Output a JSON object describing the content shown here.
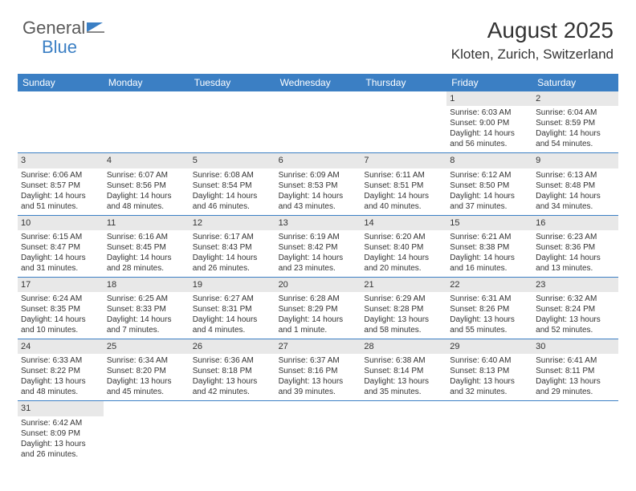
{
  "logo": {
    "general": "General",
    "blue": "Blue"
  },
  "title": "August 2025",
  "location": "Kloten, Zurich, Switzerland",
  "colors": {
    "header_bg": "#3b7fc4",
    "header_text": "#ffffff",
    "daynum_bg": "#e8e8e8",
    "border": "#3b7fc4",
    "body_text": "#333333"
  },
  "daynames": [
    "Sunday",
    "Monday",
    "Tuesday",
    "Wednesday",
    "Thursday",
    "Friday",
    "Saturday"
  ],
  "weeks": [
    [
      null,
      null,
      null,
      null,
      null,
      {
        "n": "1",
        "sr": "6:03 AM",
        "ss": "9:00 PM",
        "dl": "14 hours and 56 minutes."
      },
      {
        "n": "2",
        "sr": "6:04 AM",
        "ss": "8:59 PM",
        "dl": "14 hours and 54 minutes."
      }
    ],
    [
      {
        "n": "3",
        "sr": "6:06 AM",
        "ss": "8:57 PM",
        "dl": "14 hours and 51 minutes."
      },
      {
        "n": "4",
        "sr": "6:07 AM",
        "ss": "8:56 PM",
        "dl": "14 hours and 48 minutes."
      },
      {
        "n": "5",
        "sr": "6:08 AM",
        "ss": "8:54 PM",
        "dl": "14 hours and 46 minutes."
      },
      {
        "n": "6",
        "sr": "6:09 AM",
        "ss": "8:53 PM",
        "dl": "14 hours and 43 minutes."
      },
      {
        "n": "7",
        "sr": "6:11 AM",
        "ss": "8:51 PM",
        "dl": "14 hours and 40 minutes."
      },
      {
        "n": "8",
        "sr": "6:12 AM",
        "ss": "8:50 PM",
        "dl": "14 hours and 37 minutes."
      },
      {
        "n": "9",
        "sr": "6:13 AM",
        "ss": "8:48 PM",
        "dl": "14 hours and 34 minutes."
      }
    ],
    [
      {
        "n": "10",
        "sr": "6:15 AM",
        "ss": "8:47 PM",
        "dl": "14 hours and 31 minutes."
      },
      {
        "n": "11",
        "sr": "6:16 AM",
        "ss": "8:45 PM",
        "dl": "14 hours and 28 minutes."
      },
      {
        "n": "12",
        "sr": "6:17 AM",
        "ss": "8:43 PM",
        "dl": "14 hours and 26 minutes."
      },
      {
        "n": "13",
        "sr": "6:19 AM",
        "ss": "8:42 PM",
        "dl": "14 hours and 23 minutes."
      },
      {
        "n": "14",
        "sr": "6:20 AM",
        "ss": "8:40 PM",
        "dl": "14 hours and 20 minutes."
      },
      {
        "n": "15",
        "sr": "6:21 AM",
        "ss": "8:38 PM",
        "dl": "14 hours and 16 minutes."
      },
      {
        "n": "16",
        "sr": "6:23 AM",
        "ss": "8:36 PM",
        "dl": "14 hours and 13 minutes."
      }
    ],
    [
      {
        "n": "17",
        "sr": "6:24 AM",
        "ss": "8:35 PM",
        "dl": "14 hours and 10 minutes."
      },
      {
        "n": "18",
        "sr": "6:25 AM",
        "ss": "8:33 PM",
        "dl": "14 hours and 7 minutes."
      },
      {
        "n": "19",
        "sr": "6:27 AM",
        "ss": "8:31 PM",
        "dl": "14 hours and 4 minutes."
      },
      {
        "n": "20",
        "sr": "6:28 AM",
        "ss": "8:29 PM",
        "dl": "14 hours and 1 minute."
      },
      {
        "n": "21",
        "sr": "6:29 AM",
        "ss": "8:28 PM",
        "dl": "13 hours and 58 minutes."
      },
      {
        "n": "22",
        "sr": "6:31 AM",
        "ss": "8:26 PM",
        "dl": "13 hours and 55 minutes."
      },
      {
        "n": "23",
        "sr": "6:32 AM",
        "ss": "8:24 PM",
        "dl": "13 hours and 52 minutes."
      }
    ],
    [
      {
        "n": "24",
        "sr": "6:33 AM",
        "ss": "8:22 PM",
        "dl": "13 hours and 48 minutes."
      },
      {
        "n": "25",
        "sr": "6:34 AM",
        "ss": "8:20 PM",
        "dl": "13 hours and 45 minutes."
      },
      {
        "n": "26",
        "sr": "6:36 AM",
        "ss": "8:18 PM",
        "dl": "13 hours and 42 minutes."
      },
      {
        "n": "27",
        "sr": "6:37 AM",
        "ss": "8:16 PM",
        "dl": "13 hours and 39 minutes."
      },
      {
        "n": "28",
        "sr": "6:38 AM",
        "ss": "8:14 PM",
        "dl": "13 hours and 35 minutes."
      },
      {
        "n": "29",
        "sr": "6:40 AM",
        "ss": "8:13 PM",
        "dl": "13 hours and 32 minutes."
      },
      {
        "n": "30",
        "sr": "6:41 AM",
        "ss": "8:11 PM",
        "dl": "13 hours and 29 minutes."
      }
    ],
    [
      {
        "n": "31",
        "sr": "6:42 AM",
        "ss": "8:09 PM",
        "dl": "13 hours and 26 minutes."
      },
      null,
      null,
      null,
      null,
      null,
      null
    ]
  ],
  "labels": {
    "sunrise": "Sunrise:",
    "sunset": "Sunset:",
    "daylight": "Daylight:"
  }
}
